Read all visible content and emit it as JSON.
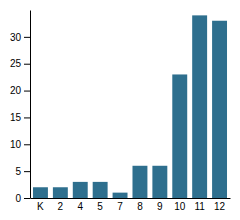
{
  "chart_data": {
    "type": "bar",
    "categories": [
      "K",
      "2",
      "4",
      "5",
      "7",
      "8",
      "9",
      "10",
      "11",
      "12"
    ],
    "values": [
      2,
      2,
      3,
      3,
      1,
      6,
      6,
      23,
      34,
      33
    ],
    "color": "#2e6f8e",
    "ylim": [
      0,
      35
    ],
    "yticks": [
      0,
      5,
      10,
      15,
      20,
      25,
      30
    ],
    "grid": false
  }
}
